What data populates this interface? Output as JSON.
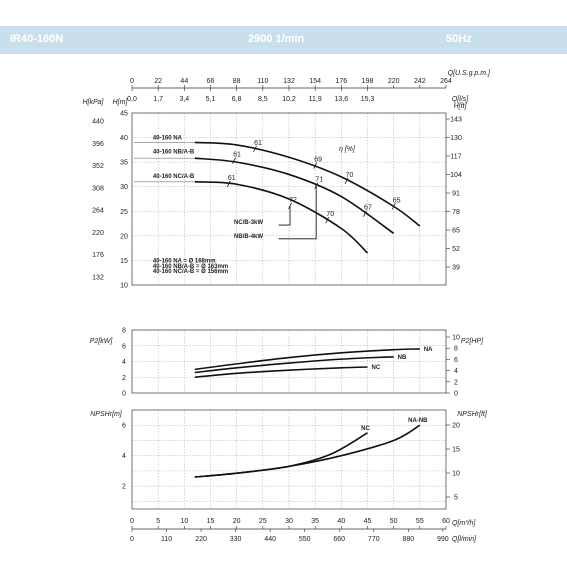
{
  "header": {
    "model": "IR40-160N",
    "speed": "2900 1/min",
    "frequency": "50Hz"
  },
  "chart_data": [
    {
      "type": "line",
      "name": "head",
      "x_axes": {
        "top1": {
          "label": "Q[U.S.g.p.m.]",
          "ticks": [
            "0",
            "22",
            "44",
            "66",
            "88",
            "110",
            "132",
            "154",
            "176",
            "198",
            "220",
            "242",
            "264"
          ]
        },
        "top2": {
          "label": "Q[l/s]",
          "ticks": [
            "0,0",
            "1,7",
            "3,4",
            "5,1",
            "6,8",
            "8,5",
            "10,2",
            "11,9",
            "13,6",
            "15,3"
          ]
        }
      },
      "y_axes": {
        "left_kpa": {
          "label": "H[kPa]",
          "ticks": [
            "440",
            "396",
            "352",
            "308",
            "264",
            "220",
            "176",
            "132"
          ]
        },
        "left_m": {
          "label": "H[m]",
          "ticks": [
            "45",
            "40",
            "35",
            "30",
            "25",
            "20",
            "15",
            "10"
          ],
          "range": [
            10,
            45
          ]
        },
        "right_ft": {
          "label": "H[ft]",
          "ticks": [
            "143",
            "130",
            "117",
            "104",
            "91",
            "78",
            "65",
            "52",
            "39"
          ]
        }
      },
      "xlim_m3h": [
        0,
        60
      ],
      "series": [
        {
          "name": "40-160 NA",
          "x": [
            12,
            20,
            30,
            40,
            50,
            55
          ],
          "y": [
            39.0,
            38.5,
            36.0,
            32.0,
            26.0,
            22.0
          ]
        },
        {
          "name": "40-160 NB/A-B",
          "x": [
            12,
            20,
            30,
            40,
            50
          ],
          "y": [
            35.8,
            35.0,
            32.5,
            28.0,
            20.5
          ]
        },
        {
          "name": "40-160 NC/A-B",
          "x": [
            12,
            20,
            30,
            40,
            45
          ],
          "y": [
            31.0,
            30.5,
            27.5,
            21.5,
            16.5
          ]
        }
      ],
      "efficiency": {
        "label": "η [%]",
        "marks": [
          {
            "text": "61",
            "x": 23.5,
            "y": 37.7
          },
          {
            "text": "69",
            "x": 35,
            "y": 34.3
          },
          {
            "text": "70",
            "x": 41,
            "y": 31.2
          },
          {
            "text": "65",
            "x": 50,
            "y": 26.0
          },
          {
            "text": "61",
            "x": 19.5,
            "y": 35.3
          },
          {
            "text": "71",
            "x": 35.2,
            "y": 30.2
          },
          {
            "text": "67",
            "x": 44.5,
            "y": 24.5
          },
          {
            "text": "61",
            "x": 18.5,
            "y": 30.6
          },
          {
            "text": "72",
            "x": 30.2,
            "y": 26.1
          },
          {
            "text": "70",
            "x": 37.3,
            "y": 23.2
          }
        ]
      },
      "annotations": [
        {
          "text": "40-160 NA",
          "x": 4,
          "y": 39.6
        },
        {
          "text": "40-160 NB/A-B",
          "x": 4,
          "y": 36.8
        },
        {
          "text": "40-160 NC/A-B",
          "x": 4,
          "y": 31.8
        },
        {
          "text": "NC/B-3kW",
          "x": 19.5,
          "y": 22.4
        },
        {
          "text": "NB/B-4kW",
          "x": 19.5,
          "y": 19.6
        },
        {
          "text": "40-160 NA = Ø 168mm",
          "x": 4,
          "y": 14.6
        },
        {
          "text": "40-160 NB/A-B = Ø 163mm",
          "x": 4,
          "y": 13.5
        },
        {
          "text": "40-160 NC/A-B = Ø 156mm",
          "x": 4,
          "y": 12.4
        }
      ],
      "sizing_points": [
        {
          "name": "NC/B-3kW",
          "x": 30.2,
          "y": 26.1
        },
        {
          "name": "NB/B-4kW",
          "x": 35.2,
          "y": 30.2
        }
      ],
      "grid": true
    },
    {
      "type": "line",
      "name": "power",
      "y_axes": {
        "left": {
          "label": "P2[kW]",
          "ticks": [
            "8",
            "6",
            "4",
            "2",
            "0"
          ],
          "range": [
            0,
            8
          ]
        },
        "right": {
          "label": "P2[HP]",
          "ticks": [
            "10",
            "8",
            "6",
            "4",
            "2",
            "0"
          ]
        }
      },
      "xlim_m3h": [
        0,
        60
      ],
      "series": [
        {
          "name": "NA",
          "x": [
            12,
            20,
            30,
            40,
            50,
            55
          ],
          "y": [
            3.0,
            3.7,
            4.5,
            5.1,
            5.5,
            5.6
          ]
        },
        {
          "name": "NB",
          "x": [
            12,
            20,
            30,
            40,
            50
          ],
          "y": [
            2.6,
            3.2,
            3.8,
            4.3,
            4.6
          ]
        },
        {
          "name": "NC",
          "x": [
            12,
            20,
            30,
            40,
            45
          ],
          "y": [
            2.0,
            2.5,
            2.9,
            3.2,
            3.3
          ]
        }
      ],
      "grid": true
    },
    {
      "type": "line",
      "name": "npsh",
      "y_axes": {
        "left": {
          "label": "NPSHr[m]",
          "ticks": [
            "6",
            "4",
            "2"
          ],
          "range": [
            0.5,
            7
          ]
        },
        "right": {
          "label": "NPSHr[ft]",
          "ticks": [
            "20",
            "15",
            "10",
            "5"
          ]
        }
      },
      "x_axes": {
        "bottom1": {
          "label": "Q[m³/h]",
          "ticks": [
            "0",
            "5",
            "10",
            "15",
            "20",
            "25",
            "30",
            "35",
            "40",
            "45",
            "50",
            "55",
            "60"
          ]
        },
        "bottom2": {
          "label": "Q[l/min]",
          "ticks": [
            "0",
            "110",
            "220",
            "330",
            "440",
            "550",
            "660",
            "770",
            "880",
            "990"
          ]
        }
      },
      "xlim_m3h": [
        0,
        60
      ],
      "series": [
        {
          "name": "NA-NB",
          "x": [
            12,
            20,
            30,
            40,
            50,
            55
          ],
          "y": [
            2.6,
            2.85,
            3.3,
            4.0,
            5.0,
            6.0
          ]
        },
        {
          "name": "NC",
          "x": [
            12,
            20,
            30,
            38,
            45
          ],
          "y": [
            2.6,
            2.85,
            3.3,
            4.1,
            5.5
          ]
        }
      ],
      "grid": true
    }
  ]
}
